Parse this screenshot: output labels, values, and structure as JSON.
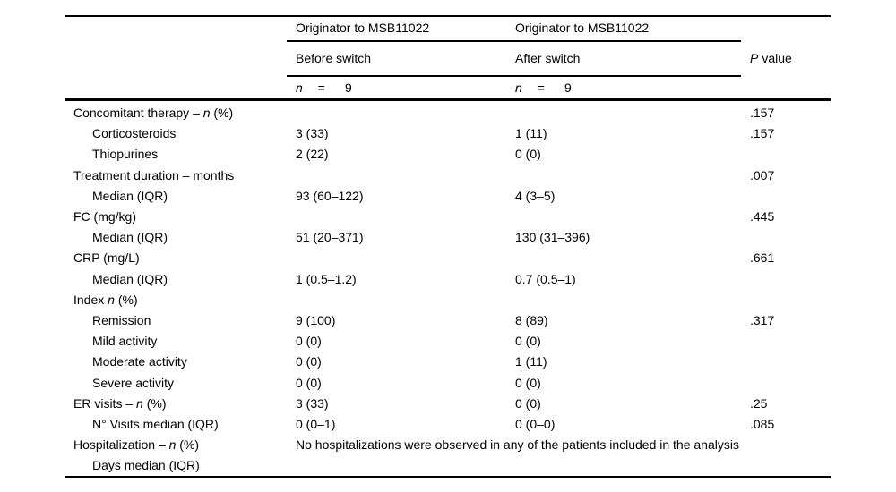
{
  "colors": {
    "text": "#000000",
    "rule": "#000000",
    "background": "#ffffff"
  },
  "table": {
    "header": {
      "group1": "Originator to MSB11022",
      "group2": "Originator to MSB11022",
      "sub1": "Before switch",
      "sub2": "After switch",
      "p_italic": "P",
      "p_rest": "value",
      "n_italic": "n",
      "n_equals": "=",
      "n_value1": "9",
      "n_value2": "9"
    },
    "rows": [
      {
        "indent": false,
        "pre": "Concomitant therapy – ",
        "it": "n",
        "post": " (%)",
        "before": "",
        "after": "",
        "p": ".157"
      },
      {
        "indent": true,
        "pre": "Corticosteroids",
        "it": "",
        "post": "",
        "before": "3 (33)",
        "after": "1 (11)",
        "p": ".157"
      },
      {
        "indent": true,
        "pre": "Thiopurines",
        "it": "",
        "post": "",
        "before": "2 (22)",
        "after": "0 (0)",
        "p": ""
      },
      {
        "indent": false,
        "pre": "Treatment duration – months",
        "it": "",
        "post": "",
        "before": "",
        "after": "",
        "p": ".007"
      },
      {
        "indent": true,
        "pre": "Median (IQR)",
        "it": "",
        "post": "",
        "before": "93 (60–122)",
        "after": "4 (3–5)",
        "p": ""
      },
      {
        "indent": false,
        "pre": "FC (mg/kg)",
        "it": "",
        "post": "",
        "before": "",
        "after": "",
        "p": ".445"
      },
      {
        "indent": true,
        "pre": "Median (IQR)",
        "it": "",
        "post": "",
        "before": "51 (20–371)",
        "after": "130 (31–396)",
        "p": ""
      },
      {
        "indent": false,
        "pre": "CRP (mg/L)",
        "it": "",
        "post": "",
        "before": "",
        "after": "",
        "p": ".661"
      },
      {
        "indent": true,
        "pre": "Median (IQR)",
        "it": "",
        "post": "",
        "before": "1 (0.5–1.2)",
        "after": "0.7 (0.5–1)",
        "p": ""
      },
      {
        "indent": false,
        "pre": "Index ",
        "it": "n",
        "post": " (%)",
        "before": "",
        "after": "",
        "p": ""
      },
      {
        "indent": true,
        "pre": "Remission",
        "it": "",
        "post": "",
        "before": "9 (100)",
        "after": "8 (89)",
        "p": ".317"
      },
      {
        "indent": true,
        "pre": "Mild activity",
        "it": "",
        "post": "",
        "before": "0 (0)",
        "after": "0 (0)",
        "p": ""
      },
      {
        "indent": true,
        "pre": "Moderate activity",
        "it": "",
        "post": "",
        "before": "0 (0)",
        "after": "1 (11)",
        "p": ""
      },
      {
        "indent": true,
        "pre": "Severe activity",
        "it": "",
        "post": "",
        "before": "0 (0)",
        "after": "0 (0)",
        "p": ""
      },
      {
        "indent": false,
        "pre": "ER visits – ",
        "it": "n",
        "post": " (%)",
        "before": "3 (33)",
        "after": "0 (0)",
        "p": ".25"
      },
      {
        "indent": true,
        "pre": "N° Visits median (IQR)",
        "it": "",
        "post": "",
        "before": "0 (0–1)",
        "after": "0 (0–0)",
        "p": ".085"
      },
      {
        "indent": false,
        "pre": "Hospitalization – ",
        "it": "n",
        "post": " (%)",
        "span": "No hospitalizations were observed in any of the patients included in the analysis",
        "p": ""
      },
      {
        "indent": true,
        "pre": "Days median (IQR)",
        "it": "",
        "post": "",
        "before": "",
        "after": "",
        "p": ""
      }
    ]
  }
}
